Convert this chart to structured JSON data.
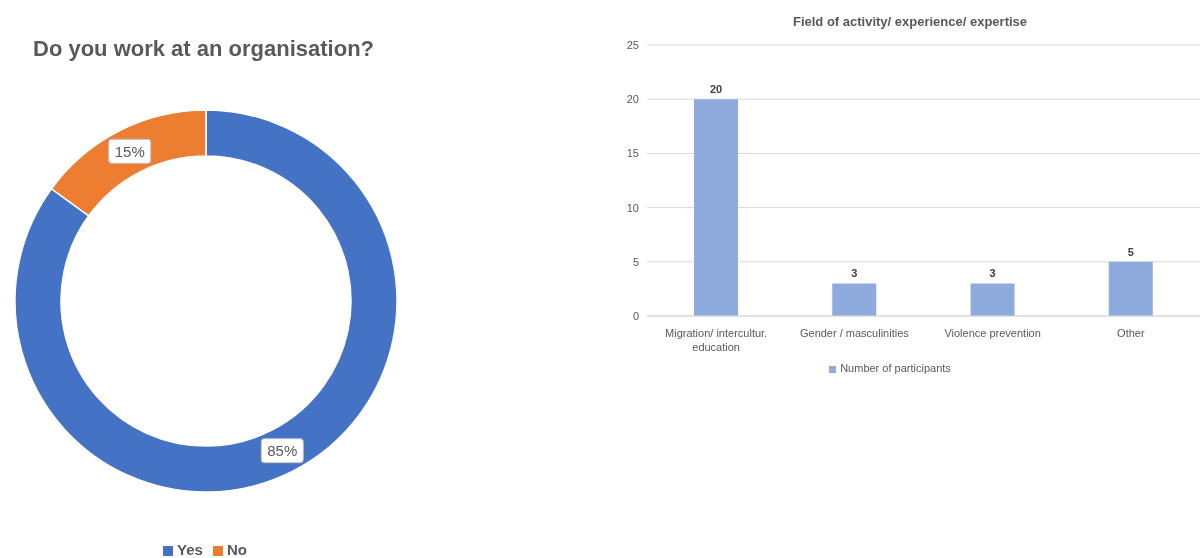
{
  "chart_data": [
    {
      "type": "donut",
      "title": "Do you work at an organisation?",
      "categories": [
        "Yes",
        "No"
      ],
      "values": [
        85,
        15
      ],
      "colors": [
        "#4472c4",
        "#ed7d31"
      ],
      "value_labels": [
        "85%",
        "15%"
      ],
      "legend": "bottom"
    },
    {
      "type": "bar",
      "title": "Field of activity/ experience/ expertise",
      "categories": [
        "Migration/ intercultur. education",
        "Gender / masculinities",
        "Violence prevention",
        "Other"
      ],
      "series": [
        {
          "name": "Number of participants",
          "color": "#8faadc",
          "values": [
            20,
            3,
            3,
            5
          ]
        }
      ],
      "ylim": [
        0,
        25
      ],
      "yticks": [
        0,
        5,
        10,
        15,
        20,
        25
      ],
      "grid": "y",
      "data_labels": true,
      "legend": "bottom"
    }
  ]
}
